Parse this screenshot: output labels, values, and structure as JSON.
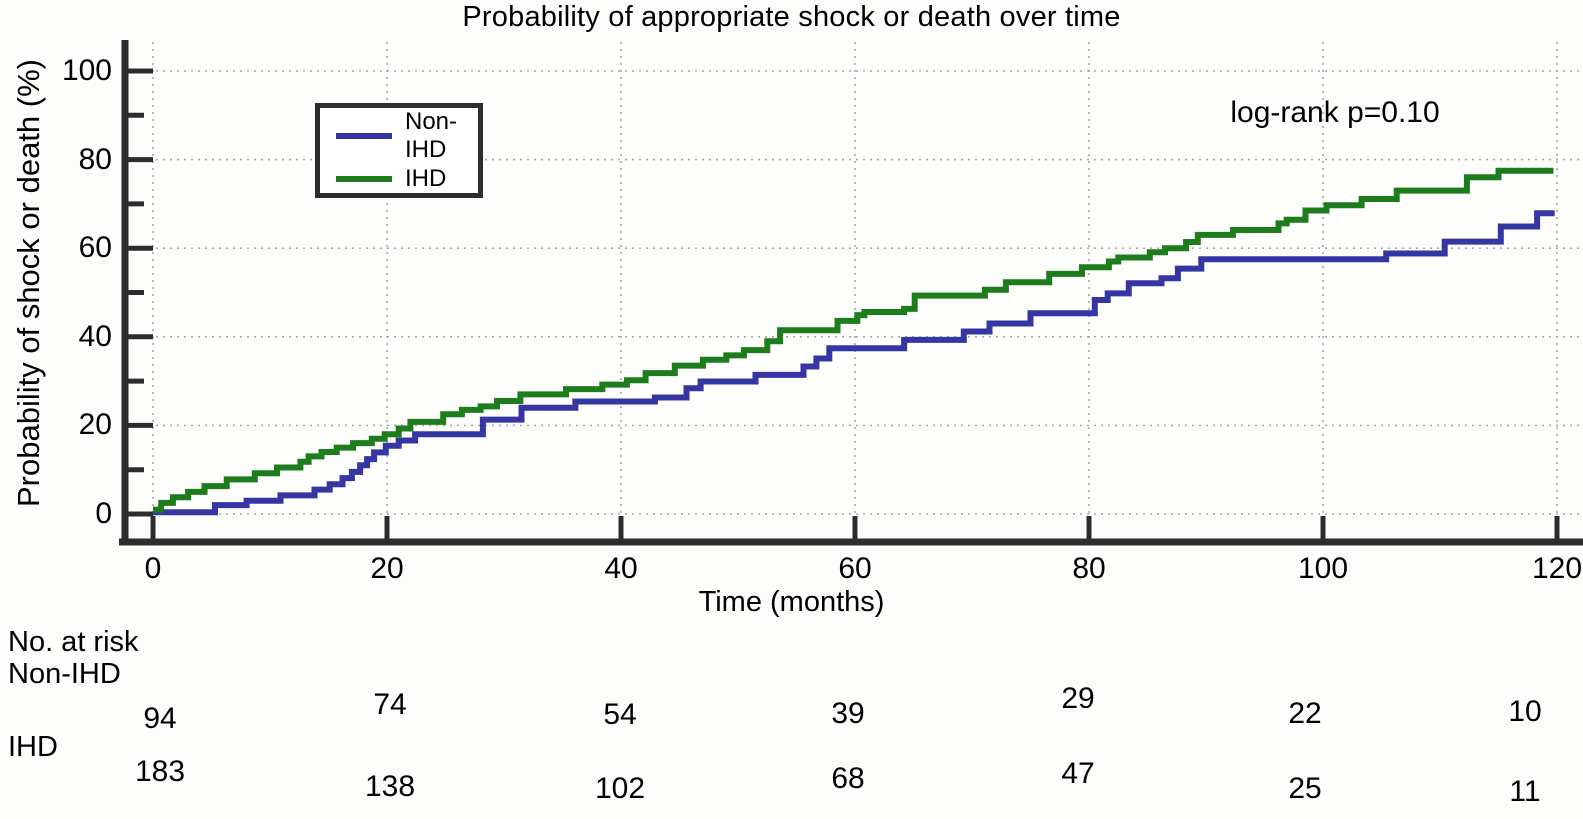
{
  "title": "Probability of appropriate shock or death over time",
  "annotation": "log-rank p=0.10",
  "legend": [
    {
      "label": "Non-IHD",
      "color": "#3636a3"
    },
    {
      "label": "IHD",
      "color": "#1d7d1d"
    }
  ],
  "colors": {
    "non_ihd": "#3636a3",
    "ihd": "#1d7d1d",
    "axis": "#2d2d2d",
    "gridline": "#a8a8a8"
  },
  "chart_data": {
    "type": "line",
    "subtype": "kaplan-meier-cumulative-incidence-step",
    "title": "Probability of appropriate shock or death over time",
    "xlabel": "Time (months)",
    "ylabel": "Probability of shock or death (%)",
    "xlim": [
      0,
      120
    ],
    "ylim": [
      0,
      100
    ],
    "x_ticks": [
      0,
      20,
      40,
      60,
      80,
      100,
      120
    ],
    "y_ticks": [
      0,
      20,
      40,
      60,
      80,
      100
    ],
    "y_minor_tick_step": 10,
    "grid": "dotted",
    "legend_position": "upper-left-inside",
    "annotation": "log-rank p=0.10",
    "series": [
      {
        "name": "Non-IHD",
        "color": "#3636a3",
        "steps": [
          [
            0,
            0.4
          ],
          [
            5.3,
            2.0
          ],
          [
            8,
            3.0
          ],
          [
            10.9,
            4.2
          ],
          [
            13.8,
            5.5
          ],
          [
            15.1,
            6.7
          ],
          [
            16.2,
            8.1
          ],
          [
            17,
            9.5
          ],
          [
            17.7,
            11.0
          ],
          [
            18.3,
            12.4
          ],
          [
            18.9,
            13.9
          ],
          [
            19.9,
            15.4
          ],
          [
            21,
            16.6
          ],
          [
            22.4,
            18.0
          ],
          [
            28.2,
            21.3
          ],
          [
            31.5,
            24.0
          ],
          [
            36.1,
            25.4
          ],
          [
            42.9,
            26.3
          ],
          [
            45.6,
            28.4
          ],
          [
            46.8,
            29.9
          ],
          [
            51.5,
            31.4
          ],
          [
            55.6,
            33.3
          ],
          [
            56.7,
            35.1
          ],
          [
            57.8,
            37.4
          ],
          [
            64.2,
            39.3
          ],
          [
            69.3,
            41.2
          ],
          [
            71.5,
            43.0
          ],
          [
            75,
            45.3
          ],
          [
            80.5,
            48.3
          ],
          [
            81.6,
            49.8
          ],
          [
            83.4,
            52.1
          ],
          [
            86.2,
            53.2
          ],
          [
            87.6,
            55.4
          ],
          [
            89.6,
            57.5
          ],
          [
            105.4,
            58.8
          ],
          [
            110.4,
            61.5
          ],
          [
            115.2,
            64.9
          ],
          [
            118.3,
            67.9
          ],
          [
            119.8,
            67.9
          ]
        ]
      },
      {
        "name": "IHD",
        "color": "#1d7d1d",
        "steps": [
          [
            0,
            1.0
          ],
          [
            0.7,
            2.5
          ],
          [
            1.7,
            3.8
          ],
          [
            3,
            5.0
          ],
          [
            4.4,
            6.3
          ],
          [
            6.3,
            7.8
          ],
          [
            8.7,
            9.2
          ],
          [
            10.6,
            10.5
          ],
          [
            12.6,
            11.8
          ],
          [
            13.3,
            13.0
          ],
          [
            14.4,
            14.0
          ],
          [
            15.7,
            15.0
          ],
          [
            17.1,
            16.0
          ],
          [
            18.7,
            17.0
          ],
          [
            19.8,
            18.0
          ],
          [
            21,
            19.3
          ],
          [
            22,
            20.8
          ],
          [
            24.8,
            22.5
          ],
          [
            26.4,
            23.5
          ],
          [
            28,
            24.3
          ],
          [
            29.4,
            25.5
          ],
          [
            31.4,
            27.0
          ],
          [
            35.3,
            28.2
          ],
          [
            38.4,
            29.2
          ],
          [
            40.5,
            30.2
          ],
          [
            42.1,
            31.8
          ],
          [
            44.6,
            33.5
          ],
          [
            47,
            34.8
          ],
          [
            49,
            35.8
          ],
          [
            50.5,
            37.0
          ],
          [
            52.5,
            39.0
          ],
          [
            53.6,
            41.5
          ],
          [
            58.5,
            43.6
          ],
          [
            60.2,
            44.9
          ],
          [
            60.8,
            45.6
          ],
          [
            64.2,
            46.3
          ],
          [
            65.1,
            49.3
          ],
          [
            71.1,
            50.6
          ],
          [
            72.9,
            52.3
          ],
          [
            76.6,
            54.2
          ],
          [
            79.4,
            55.7
          ],
          [
            81.7,
            57.0
          ],
          [
            82.5,
            57.9
          ],
          [
            85.2,
            59.1
          ],
          [
            86.5,
            60.0
          ],
          [
            88.3,
            61.4
          ],
          [
            89.3,
            63.0
          ],
          [
            92.3,
            64.1
          ],
          [
            96.2,
            65.6
          ],
          [
            96.9,
            66.4
          ],
          [
            98.5,
            68.5
          ],
          [
            100.3,
            69.7
          ],
          [
            103.3,
            71.1
          ],
          [
            106.3,
            73.0
          ],
          [
            112.3,
            76.0
          ],
          [
            115,
            77.5
          ],
          [
            119.7,
            77.5
          ]
        ]
      }
    ],
    "risk_table": {
      "header": "No. at risk",
      "time_points": [
        0,
        20,
        40,
        60,
        80,
        100,
        120
      ],
      "rows": [
        {
          "name": "Non-IHD",
          "values": [
            94,
            74,
            54,
            39,
            29,
            22,
            10
          ]
        },
        {
          "name": "IHD",
          "values": [
            183,
            138,
            102,
            68,
            47,
            25,
            11
          ]
        }
      ]
    }
  }
}
